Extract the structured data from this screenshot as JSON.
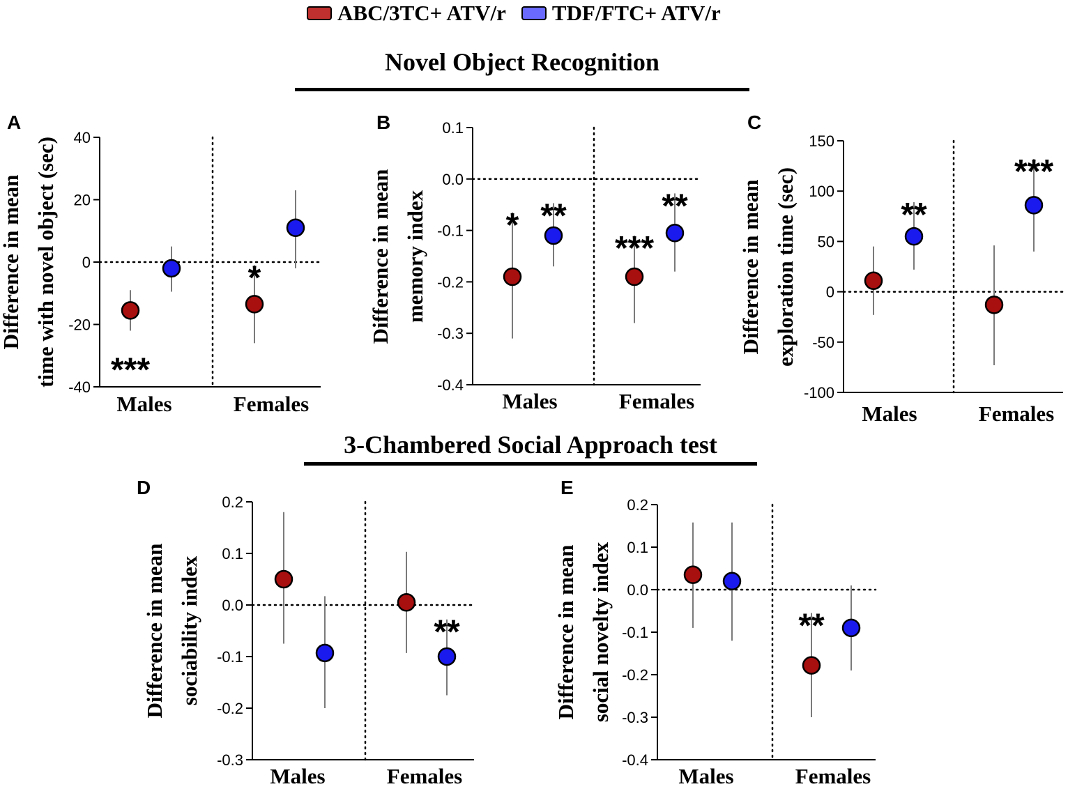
{
  "legend": [
    {
      "label": "ABC/3TC+ ATV/r",
      "color": "#a80f0f"
    },
    {
      "label": "TDF/FTC+ ATV/r",
      "color": "#1a1aee"
    }
  ],
  "legend_swatch_colors": [
    "#c0302e",
    "#6a6aff"
  ],
  "sections": {
    "nor": "Novel Object Recognition",
    "social": "3-Chambered Social Approach test"
  },
  "chart_data": [
    {
      "id": "A",
      "panel_label": "A",
      "type": "scatter",
      "ylabel_lines": [
        "Difference in mean",
        "time with novel object (sec)"
      ],
      "ylim": [
        -40,
        40
      ],
      "yticks": [
        -40,
        -20,
        0,
        20,
        40
      ],
      "ytick_labels": [
        "-40",
        "-20",
        "0",
        "20",
        "40"
      ],
      "categories": [
        "Males",
        "Females"
      ],
      "series": [
        {
          "name": "ABC/3TC+ ATV/r",
          "color": "#a80f0f",
          "points": [
            {
              "category": "Males",
              "y": -15.5,
              "lo": -22,
              "hi": -9,
              "sig": "***"
            },
            {
              "category": "Females",
              "y": -13.5,
              "lo": -26,
              "hi": -1,
              "sig": "*"
            }
          ]
        },
        {
          "name": "TDF/FTC+ ATV/r",
          "color": "#1a1aee",
          "points": [
            {
              "category": "Males",
              "y": -2,
              "lo": -9.5,
              "hi": 5,
              "sig": ""
            },
            {
              "category": "Females",
              "y": 11,
              "lo": -2,
              "hi": 23,
              "sig": ""
            }
          ]
        }
      ]
    },
    {
      "id": "B",
      "panel_label": "B",
      "type": "scatter",
      "ylabel_lines": [
        "Difference in mean",
        "memory index"
      ],
      "ylim": [
        -0.4,
        0.1
      ],
      "yticks": [
        -0.4,
        -0.3,
        -0.2,
        -0.1,
        0,
        0.1
      ],
      "ytick_labels": [
        "-0.4",
        "-0.3",
        "-0.2",
        "-0.1",
        "0.0",
        "0.1"
      ],
      "categories": [
        "Males",
        "Females"
      ],
      "series": [
        {
          "name": "ABC/3TC+ ATV/r",
          "color": "#a80f0f",
          "points": [
            {
              "category": "Males",
              "y": -0.19,
              "lo": -0.31,
              "hi": -0.065,
              "sig": "*"
            },
            {
              "category": "Females",
              "y": -0.19,
              "lo": -0.28,
              "hi": -0.11,
              "sig": "***"
            }
          ]
        },
        {
          "name": "TDF/FTC+ ATV/r",
          "color": "#1a1aee",
          "points": [
            {
              "category": "Males",
              "y": -0.11,
              "lo": -0.17,
              "hi": -0.047,
              "sig": "**"
            },
            {
              "category": "Females",
              "y": -0.105,
              "lo": -0.18,
              "hi": -0.028,
              "sig": "**"
            }
          ]
        }
      ]
    },
    {
      "id": "C",
      "panel_label": "C",
      "type": "scatter",
      "ylabel_lines": [
        "Difference in mean",
        "exploration time (sec)"
      ],
      "ylim": [
        -100,
        150
      ],
      "yticks": [
        -100,
        -50,
        0,
        50,
        100,
        150
      ],
      "ytick_labels": [
        "-100",
        "-50",
        "0",
        "50",
        "100",
        "150"
      ],
      "categories": [
        "Males",
        "Females"
      ],
      "series": [
        {
          "name": "ABC/3TC+ ATV/r",
          "color": "#a80f0f",
          "points": [
            {
              "category": "Males",
              "y": 11,
              "lo": -23,
              "hi": 45,
              "sig": ""
            },
            {
              "category": "Females",
              "y": -13,
              "lo": -73,
              "hi": 46,
              "sig": ""
            }
          ]
        },
        {
          "name": "TDF/FTC+ ATV/r",
          "color": "#1a1aee",
          "points": [
            {
              "category": "Males",
              "y": 55,
              "lo": 22,
              "hi": 89,
              "sig": "**"
            },
            {
              "category": "Females",
              "y": 86,
              "lo": 40,
              "hi": 132,
              "sig": "***"
            }
          ]
        }
      ]
    },
    {
      "id": "D",
      "panel_label": "D",
      "type": "scatter",
      "ylabel_lines": [
        "Difference in mean",
        "sociability index"
      ],
      "ylim": [
        -0.3,
        0.2
      ],
      "yticks": [
        -0.3,
        -0.2,
        -0.1,
        0,
        0.1,
        0.2
      ],
      "ytick_labels": [
        "-0.3",
        "-0.2",
        "-0.1",
        "0.0",
        "0.1",
        "0.2"
      ],
      "categories": [
        "Males",
        "Females"
      ],
      "series": [
        {
          "name": "ABC/3TC+ ATV/r",
          "color": "#a80f0f",
          "points": [
            {
              "category": "Males",
              "y": 0.05,
              "lo": -0.075,
              "hi": 0.18,
              "sig": ""
            },
            {
              "category": "Females",
              "y": 0.005,
              "lo": -0.093,
              "hi": 0.103,
              "sig": ""
            }
          ]
        },
        {
          "name": "TDF/FTC+ ATV/r",
          "color": "#1a1aee",
          "points": [
            {
              "category": "Males",
              "y": -0.093,
              "lo": -0.2,
              "hi": 0.017,
              "sig": ""
            },
            {
              "category": "Females",
              "y": -0.1,
              "lo": -0.175,
              "hi": -0.028,
              "sig": "**"
            }
          ]
        }
      ]
    },
    {
      "id": "E",
      "panel_label": "E",
      "type": "scatter",
      "ylabel_lines": [
        "Difference in mean",
        "social novelty index"
      ],
      "ylim": [
        -0.4,
        0.2
      ],
      "yticks": [
        -0.4,
        -0.3,
        -0.2,
        -0.1,
        0,
        0.1,
        0.2
      ],
      "ytick_labels": [
        "-0.4",
        "-0.3",
        "-0.2",
        "-0.1",
        "0.0",
        "0.1",
        "0.2"
      ],
      "categories": [
        "Males",
        "Females"
      ],
      "series": [
        {
          "name": "ABC/3TC+ ATV/r",
          "color": "#a80f0f",
          "points": [
            {
              "category": "Males",
              "y": 0.035,
              "lo": -0.09,
              "hi": 0.158,
              "sig": ""
            },
            {
              "category": "Females",
              "y": -0.178,
              "lo": -0.3,
              "hi": -0.055,
              "sig": "**"
            }
          ]
        },
        {
          "name": "TDF/FTC+ ATV/r",
          "color": "#1a1aee",
          "points": [
            {
              "category": "Males",
              "y": 0.02,
              "lo": -0.12,
              "hi": 0.158,
              "sig": ""
            },
            {
              "category": "Females",
              "y": -0.09,
              "lo": -0.19,
              "hi": 0.01,
              "sig": ""
            }
          ]
        }
      ]
    }
  ]
}
